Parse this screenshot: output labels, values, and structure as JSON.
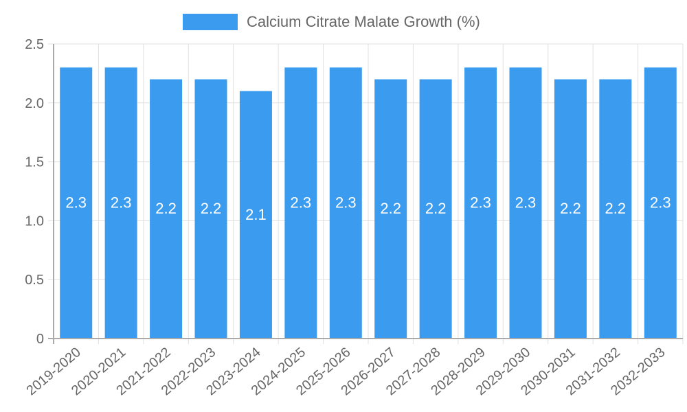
{
  "chart_data": {
    "type": "bar",
    "title": "",
    "legend": {
      "entries": [
        "Calcium Citrate Malate Growth (%)"
      ],
      "position": "top"
    },
    "categories": [
      "2019-2020",
      "2020-2021",
      "2021-2022",
      "2022-2023",
      "2023-2024",
      "2024-2025",
      "2025-2026",
      "2026-2027",
      "2027-2028",
      "2028-2029",
      "2029-2030",
      "2030-2031",
      "2031-2032",
      "2032-2033"
    ],
    "series": [
      {
        "name": "Calcium Citrate Malate Growth (%)",
        "values": [
          2.3,
          2.3,
          2.2,
          2.2,
          2.1,
          2.3,
          2.3,
          2.2,
          2.2,
          2.3,
          2.3,
          2.2,
          2.2,
          2.3
        ],
        "color": "#3a9bef"
      }
    ],
    "data_labels": [
      "2.3",
      "2.3",
      "2.2",
      "2.2",
      "2.1",
      "2.3",
      "2.3",
      "2.2",
      "2.2",
      "2.3",
      "2.3",
      "2.2",
      "2.2",
      "2.3"
    ],
    "xlabel": "",
    "ylabel": "",
    "ylim": [
      0,
      2.5
    ],
    "yticks": [
      "0",
      "0.5",
      "1.0",
      "1.5",
      "2.0",
      "2.5"
    ],
    "grid": true
  },
  "legend": {
    "label": "Calcium Citrate Malate Growth (%)"
  }
}
